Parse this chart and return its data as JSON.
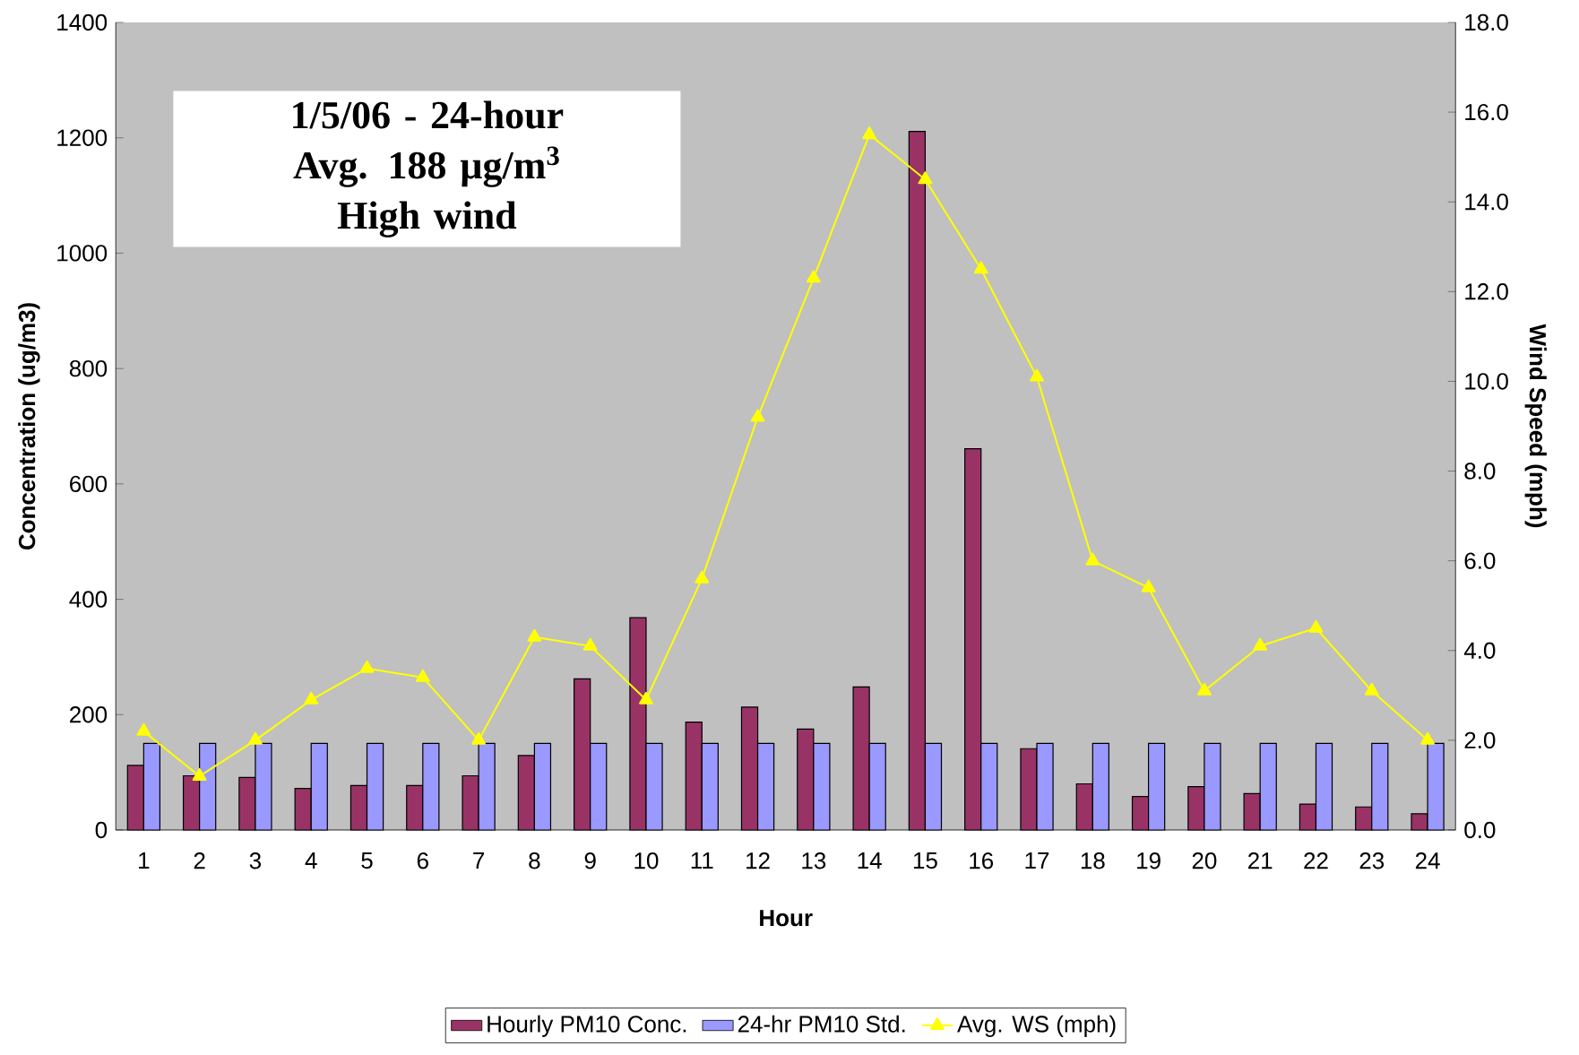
{
  "chart_data": {
    "type": "bar",
    "xlabel": "Hour",
    "ylabel": "Concentration (ug/m3)",
    "y2label": "Wind Speed (mph)",
    "categories": [
      "1",
      "2",
      "3",
      "4",
      "5",
      "6",
      "7",
      "8",
      "9",
      "10",
      "11",
      "12",
      "13",
      "14",
      "15",
      "16",
      "17",
      "18",
      "19",
      "20",
      "21",
      "22",
      "23",
      "24"
    ],
    "series": [
      {
        "name": "Hourly PM10 Conc.",
        "color": "#993366",
        "values": [
          112,
          94,
          91,
          72,
          77,
          77,
          94,
          129,
          262,
          368,
          187,
          213,
          175,
          248,
          1211,
          661,
          141,
          80,
          58,
          75,
          63,
          45,
          40,
          28
        ]
      },
      {
        "name": "24-hr PM10 Std.",
        "color": "#9999ff",
        "values": [
          150,
          150,
          150,
          150,
          150,
          150,
          150,
          150,
          150,
          150,
          150,
          150,
          150,
          150,
          150,
          150,
          150,
          150,
          150,
          150,
          150,
          150,
          150,
          150
        ]
      },
      {
        "name": "Avg. WS (mph)",
        "type": "line",
        "axis": "y2",
        "color": "#ffff00",
        "marker": "triangle",
        "values": [
          2.2,
          1.2,
          2.0,
          2.9,
          3.6,
          3.4,
          2.0,
          4.3,
          4.1,
          2.9,
          5.6,
          9.2,
          12.3,
          15.5,
          14.5,
          12.5,
          10.1,
          6.0,
          5.4,
          3.1,
          4.1,
          4.5,
          3.1,
          2.0
        ]
      }
    ],
    "ylim": [
      0,
      1400
    ],
    "yticks": [
      0,
      200,
      400,
      600,
      800,
      1000,
      1200,
      1400
    ],
    "y2lim": [
      0,
      18
    ],
    "y2ticks": [
      {
        "value": 0,
        "label": "0.0"
      },
      {
        "value": 2,
        "label": "2.0"
      },
      {
        "value": 4,
        "label": "4.0"
      },
      {
        "value": 6,
        "label": "6.0"
      },
      {
        "value": 8,
        "label": "8.0"
      },
      {
        "value": 10,
        "label": "10.0"
      },
      {
        "value": 12,
        "label": "12.0"
      },
      {
        "value": 14,
        "label": "14.0"
      },
      {
        "value": 16,
        "label": "16.0"
      },
      {
        "value": 18,
        "label": "18.0"
      }
    ],
    "annotations": [
      "1/5/06 - 24-hour",
      "Avg. 188 µg/m$^{3}$",
      "High wind"
    ],
    "legend": "bottom",
    "grid": false
  }
}
